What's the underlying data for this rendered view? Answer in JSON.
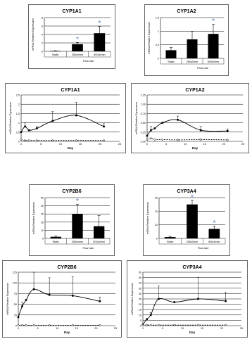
{
  "chart_data": [
    {
      "id": "bar1",
      "type": "bar",
      "title": "CYP1A1",
      "ylabel": "mRNA Relative Expression",
      "xlabel": "Flow rate",
      "ylim": [
        0,
        8
      ],
      "yticks": [
        "0",
        "2",
        "4",
        "6",
        "8"
      ],
      "categories": [
        "Static",
        "250ul/min",
        "500ul/min"
      ],
      "values": [
        0.1,
        1.7,
        4.3
      ],
      "errors": [
        0.05,
        0.4,
        1.6
      ],
      "star_color": "#6f8fbf",
      "significant": [
        false,
        true,
        true
      ]
    },
    {
      "id": "bar2",
      "type": "bar",
      "title": "CYP1A2",
      "ylabel": "mRNA Relative Expression",
      "xlabel": "Flow rate",
      "ylim": [
        0,
        1.5
      ],
      "yticks": [
        "0",
        "0,5",
        "1",
        "1,5"
      ],
      "categories": [
        "Static",
        "250ul/min",
        "500ul/min"
      ],
      "values": [
        0.3,
        0.7,
        0.9
      ],
      "errors": [
        0.1,
        0.3,
        0.35
      ],
      "star_color": "#6f8fbf",
      "significant": [
        false,
        false,
        true
      ]
    },
    {
      "id": "line1",
      "type": "line",
      "title": "CYP1A1",
      "ylabel": "mRNA Relative Expression",
      "xlabel": "Day",
      "xlim": [
        0,
        25
      ],
      "ylim": [
        0,
        2.5
      ],
      "xticks": [
        "0",
        "5",
        "10",
        "15",
        "20",
        "25"
      ],
      "yticks": [
        "0",
        "0,5",
        "1",
        "1,5",
        "2",
        "2,5"
      ],
      "series": [
        {
          "x": [
            0,
            1,
            2,
            4,
            8,
            14,
            21
          ],
          "y": [
            0.5,
            0.8,
            0.6,
            0.7,
            1.1,
            1.4,
            0.8
          ],
          "err": [
            0,
            0.2,
            0,
            0.1,
            0.5,
            0.7,
            0.15
          ],
          "dashed": false
        },
        {
          "x": [
            0,
            1,
            2,
            4,
            8,
            14,
            21
          ],
          "y": [
            0.1,
            0.05,
            0.05,
            0.05,
            0.05,
            0.05,
            0.05
          ],
          "err": [
            0,
            0,
            0,
            0,
            0,
            0,
            0
          ],
          "dashed": true
        }
      ]
    },
    {
      "id": "line2",
      "type": "line",
      "title": "CYP1A2",
      "ylabel": "mRNA Relative Expression",
      "xlabel": "Day",
      "xlim": [
        0,
        25
      ],
      "ylim": [
        0,
        1
      ],
      "xticks": [
        "0",
        "5",
        "10",
        "15",
        "20",
        "25"
      ],
      "yticks": [
        "0,00",
        "0,25",
        "0,50",
        "0,75",
        "1,00",
        "1,25"
      ],
      "ytick_values": [
        0,
        0.25,
        0.5,
        0.75,
        1.0,
        1.25
      ],
      "ymax": 1.25,
      "series": [
        {
          "x": [
            0,
            1,
            2,
            4,
            8,
            14,
            21
          ],
          "y": [
            0.15,
            0.3,
            0.35,
            0.5,
            0.58,
            0.3,
            0.28
          ],
          "err": [
            0,
            0.1,
            0,
            0,
            0.1,
            0.1,
            0.05
          ],
          "dashed": false
        },
        {
          "x": [
            0,
            1,
            2,
            4,
            8,
            14,
            21
          ],
          "y": [
            0.05,
            0.08,
            0.05,
            0.05,
            0.04,
            0.05,
            0.04
          ],
          "err": [
            0,
            0,
            0,
            0,
            0,
            0,
            0
          ],
          "dashed": true
        }
      ]
    },
    {
      "id": "bar3",
      "type": "bar",
      "title": "CYP2B6",
      "ylabel": "mRNA Relative Expression",
      "xlabel": "Flow rate",
      "ylim": [
        0,
        50
      ],
      "yticks": [
        "0",
        "10",
        "20",
        "30",
        "40",
        "50"
      ],
      "categories": [
        "Static",
        "250ul/min",
        "500ul/min"
      ],
      "values": [
        2,
        30,
        15
      ],
      "errors": [
        1,
        12,
        13
      ],
      "star_color": "#6f8fbf",
      "significant": [
        false,
        true,
        false
      ]
    },
    {
      "id": "bar4",
      "type": "bar",
      "title": "CYP3A4",
      "ylabel": "mRNA Relative Expression",
      "xlabel": "Flow rate",
      "ylim": [
        0,
        30
      ],
      "yticks": [
        "0",
        "10",
        "20",
        "30"
      ],
      "categories": [
        "Static",
        "250ul/min",
        "500ul/min"
      ],
      "values": [
        1,
        25,
        7
      ],
      "errors": [
        0.5,
        3,
        2
      ],
      "star_color": "#6f8fbf",
      "significant": [
        false,
        true,
        true
      ]
    },
    {
      "id": "line3",
      "type": "line",
      "title": "CYP2B6",
      "ylabel": "mRNA Relative Expression",
      "xlabel": "Day",
      "xlim": [
        0,
        25
      ],
      "ylim": [
        0,
        125
      ],
      "xticks": [
        "0",
        "5",
        "10",
        "15",
        "20",
        "25"
      ],
      "yticks": [
        "0",
        "25",
        "50",
        "75",
        "100",
        "125"
      ],
      "series": [
        {
          "x": [
            0,
            1,
            2,
            4,
            8,
            14,
            21
          ],
          "y": [
            20,
            45,
            60,
            85,
            72,
            70,
            57
          ],
          "err": [
            0,
            10,
            0,
            40,
            40,
            45,
            10
          ],
          "dashed": false
        },
        {
          "x": [
            0,
            1,
            2,
            4,
            8,
            14,
            21
          ],
          "y": [
            1,
            1,
            1,
            1,
            1,
            1,
            1
          ],
          "err": [
            0,
            0,
            0,
            0,
            0,
            0,
            0
          ],
          "dashed": true
        }
      ]
    },
    {
      "id": "line4",
      "type": "line",
      "title": "CYP3A4",
      "ylabel": "mRNA Relative Expression",
      "xlabel": "Day",
      "xlim": [
        0,
        25
      ],
      "ylim": [
        0,
        50
      ],
      "xticks": [
        "0",
        "5",
        "10",
        "15",
        "20",
        "25"
      ],
      "yticks": [
        "0",
        "5",
        "10",
        "15",
        "20",
        "25",
        "30",
        "35",
        "40",
        "45",
        "50"
      ],
      "series": [
        {
          "x": [
            0,
            1,
            2,
            4,
            8,
            14,
            21
          ],
          "y": [
            1,
            6,
            10,
            25,
            22,
            25,
            23
          ],
          "err": [
            0,
            0,
            2,
            12,
            0,
            20,
            8
          ],
          "dashed": false
        },
        {
          "x": [
            0,
            1,
            2,
            4,
            8,
            14,
            21
          ],
          "y": [
            0.5,
            0.5,
            0.5,
            0.5,
            0.5,
            0.5,
            0.5
          ],
          "err": [
            0,
            0,
            0,
            0,
            0,
            0,
            0
          ],
          "dashed": true
        }
      ]
    }
  ]
}
